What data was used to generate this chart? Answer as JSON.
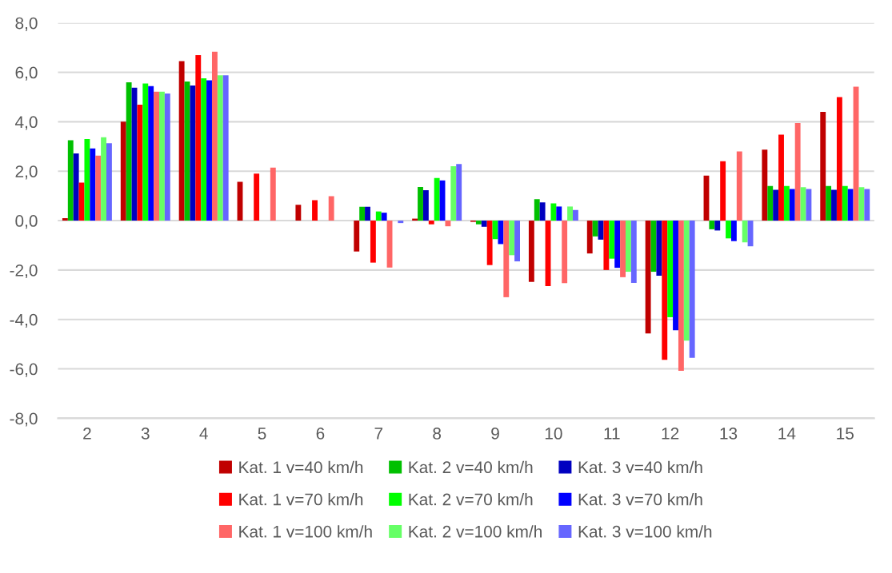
{
  "chart_data": {
    "type": "bar",
    "categories": [
      "2",
      "3",
      "4",
      "5",
      "6",
      "7",
      "8",
      "9",
      "10",
      "11",
      "12",
      "13",
      "14",
      "15"
    ],
    "series": [
      {
        "name": "Kat. 1 v=40 km/h",
        "color": "#c00000",
        "values": [
          0.1,
          4.0,
          6.45,
          1.57,
          0.64,
          -1.25,
          0.08,
          -0.05,
          -2.48,
          -1.33,
          -4.57,
          1.82,
          2.87,
          4.4
        ]
      },
      {
        "name": "Kat. 2 v=40 km/h",
        "color": "#00c000",
        "values": [
          3.25,
          5.6,
          5.63,
          null,
          null,
          0.56,
          1.36,
          -0.15,
          0.87,
          -0.64,
          -2.07,
          -0.35,
          1.4,
          1.4
        ]
      },
      {
        "name": "Kat. 3 v=40 km/h",
        "color": "#0000c0",
        "values": [
          2.72,
          5.38,
          5.47,
          null,
          null,
          0.56,
          1.23,
          -0.25,
          0.74,
          -0.77,
          -2.23,
          -0.4,
          1.25,
          1.25
        ]
      },
      {
        "name": "Kat. 1 v=70 km/h",
        "color": "#ff0000",
        "values": [
          1.54,
          4.69,
          6.7,
          1.9,
          0.83,
          -1.7,
          -0.15,
          -1.8,
          -2.65,
          -2.0,
          -5.63,
          2.4,
          3.48,
          5.0
        ]
      },
      {
        "name": "Kat. 2 v=70 km/h",
        "color": "#00ff00",
        "values": [
          3.3,
          5.55,
          5.76,
          null,
          null,
          0.37,
          1.72,
          -0.75,
          0.7,
          -1.54,
          -3.91,
          -0.72,
          1.4,
          1.4
        ]
      },
      {
        "name": "Kat. 3 v=70 km/h",
        "color": "#0000ff",
        "values": [
          2.92,
          5.44,
          5.68,
          null,
          null,
          0.32,
          1.63,
          -0.95,
          0.57,
          -1.91,
          -4.44,
          -0.83,
          1.28,
          1.28
        ]
      },
      {
        "name": "Kat. 1 v=100 km/h",
        "color": "#ff6666",
        "values": [
          2.63,
          5.22,
          6.83,
          2.14,
          0.99,
          -1.9,
          -0.23,
          -3.1,
          -2.53,
          -2.29,
          -6.08,
          2.8,
          3.95,
          5.42
        ]
      },
      {
        "name": "Kat. 2 v=100 km/h",
        "color": "#66ff66",
        "values": [
          3.37,
          5.22,
          5.88,
          null,
          null,
          null,
          2.2,
          -1.4,
          0.57,
          -2.07,
          -4.86,
          -0.88,
          1.35,
          1.35
        ]
      },
      {
        "name": "Kat. 3 v=100 km/h",
        "color": "#6666ff",
        "values": [
          3.13,
          5.14,
          5.88,
          null,
          null,
          -0.1,
          2.29,
          -1.65,
          0.43,
          -2.52,
          -5.55,
          -1.04,
          1.28,
          1.28
        ]
      }
    ],
    "ylim": [
      -8,
      8
    ],
    "yticks": [
      {
        "value": -8,
        "label": "-8,0"
      },
      {
        "value": -6,
        "label": "-6,0"
      },
      {
        "value": -4,
        "label": "-4,0"
      },
      {
        "value": -2,
        "label": "-2,0"
      },
      {
        "value": 0,
        "label": "0,0"
      },
      {
        "value": 2,
        "label": "2,0"
      },
      {
        "value": 4,
        "label": "4,0"
      },
      {
        "value": 6,
        "label": "6,0"
      },
      {
        "value": 8,
        "label": "8,0"
      }
    ],
    "grid": "y",
    "legend": "bottom"
  }
}
